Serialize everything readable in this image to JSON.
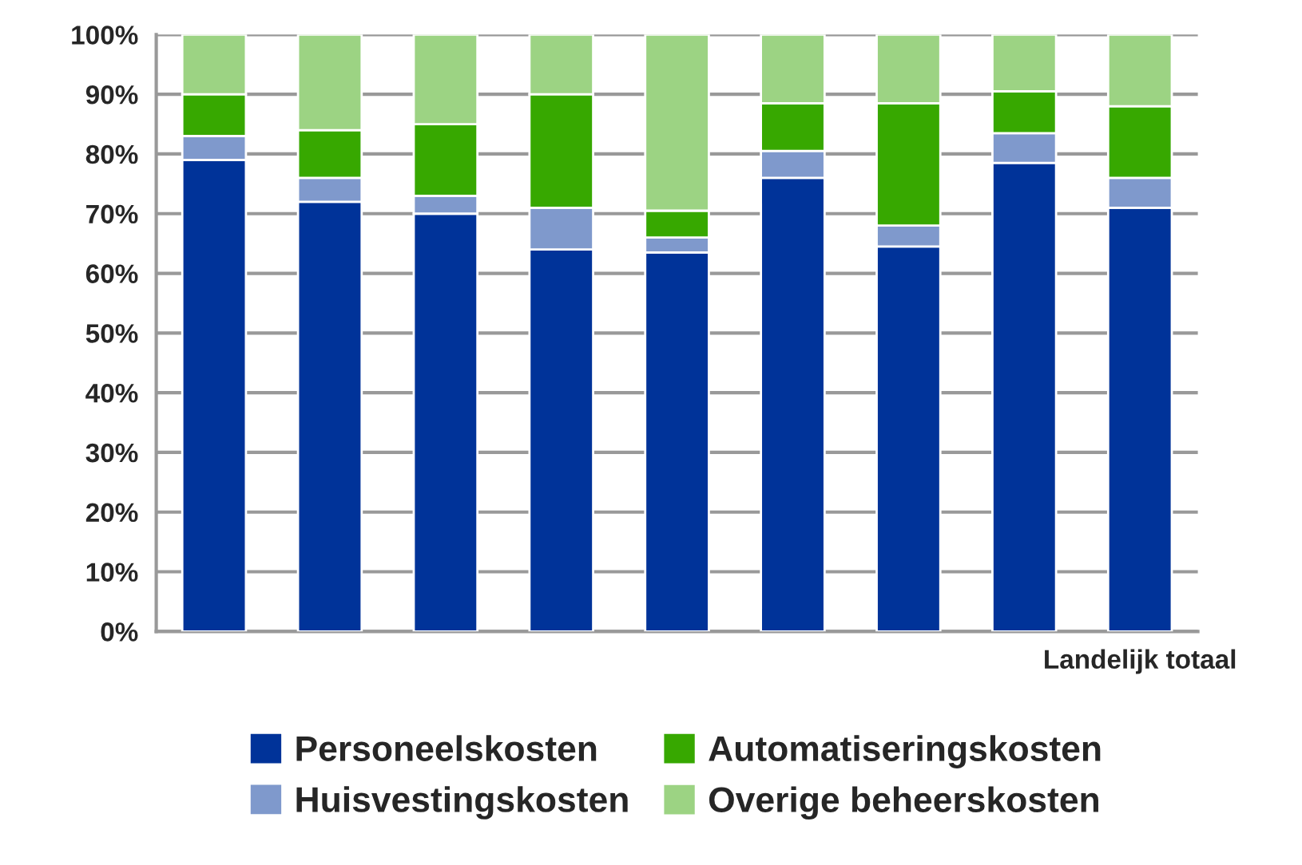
{
  "chart_data": {
    "type": "bar",
    "stacked": true,
    "categories": [
      null,
      null,
      null,
      null,
      null,
      null,
      null,
      null,
      "Landelijk totaal"
    ],
    "series": [
      {
        "name": "Personeelskosten",
        "color": "#003399",
        "values": [
          79,
          72,
          70,
          64,
          63.5,
          76,
          64.5,
          78.5,
          71
        ]
      },
      {
        "name": "Huisvestingskosten",
        "color": "#7f99cc",
        "values": [
          4,
          4,
          3,
          7,
          2.5,
          4.5,
          3.5,
          5,
          5
        ]
      },
      {
        "name": "Automatiseringskosten",
        "color": "#37a800",
        "values": [
          7,
          8,
          12,
          19,
          4.5,
          8,
          20.5,
          7,
          12
        ]
      },
      {
        "name": "Overige beheerskosten",
        "color": "#9cd383",
        "values": [
          10,
          16,
          15,
          10,
          29.5,
          11.5,
          11.5,
          9.5,
          12
        ]
      }
    ],
    "ylim": [
      0,
      100
    ],
    "yticks": [
      {
        "value": 0,
        "label": "0%"
      },
      {
        "value": 10,
        "label": "10%"
      },
      {
        "value": 20,
        "label": "20%"
      },
      {
        "value": 30,
        "label": "30%"
      },
      {
        "value": 40,
        "label": "40%"
      },
      {
        "value": 50,
        "label": "50%"
      },
      {
        "value": 60,
        "label": "60%"
      },
      {
        "value": 70,
        "label": "70%"
      },
      {
        "value": 80,
        "label": "80%"
      },
      {
        "value": 90,
        "label": "90%"
      },
      {
        "value": 100,
        "label": "100%"
      }
    ],
    "grid": "y",
    "legend": "bottom"
  }
}
